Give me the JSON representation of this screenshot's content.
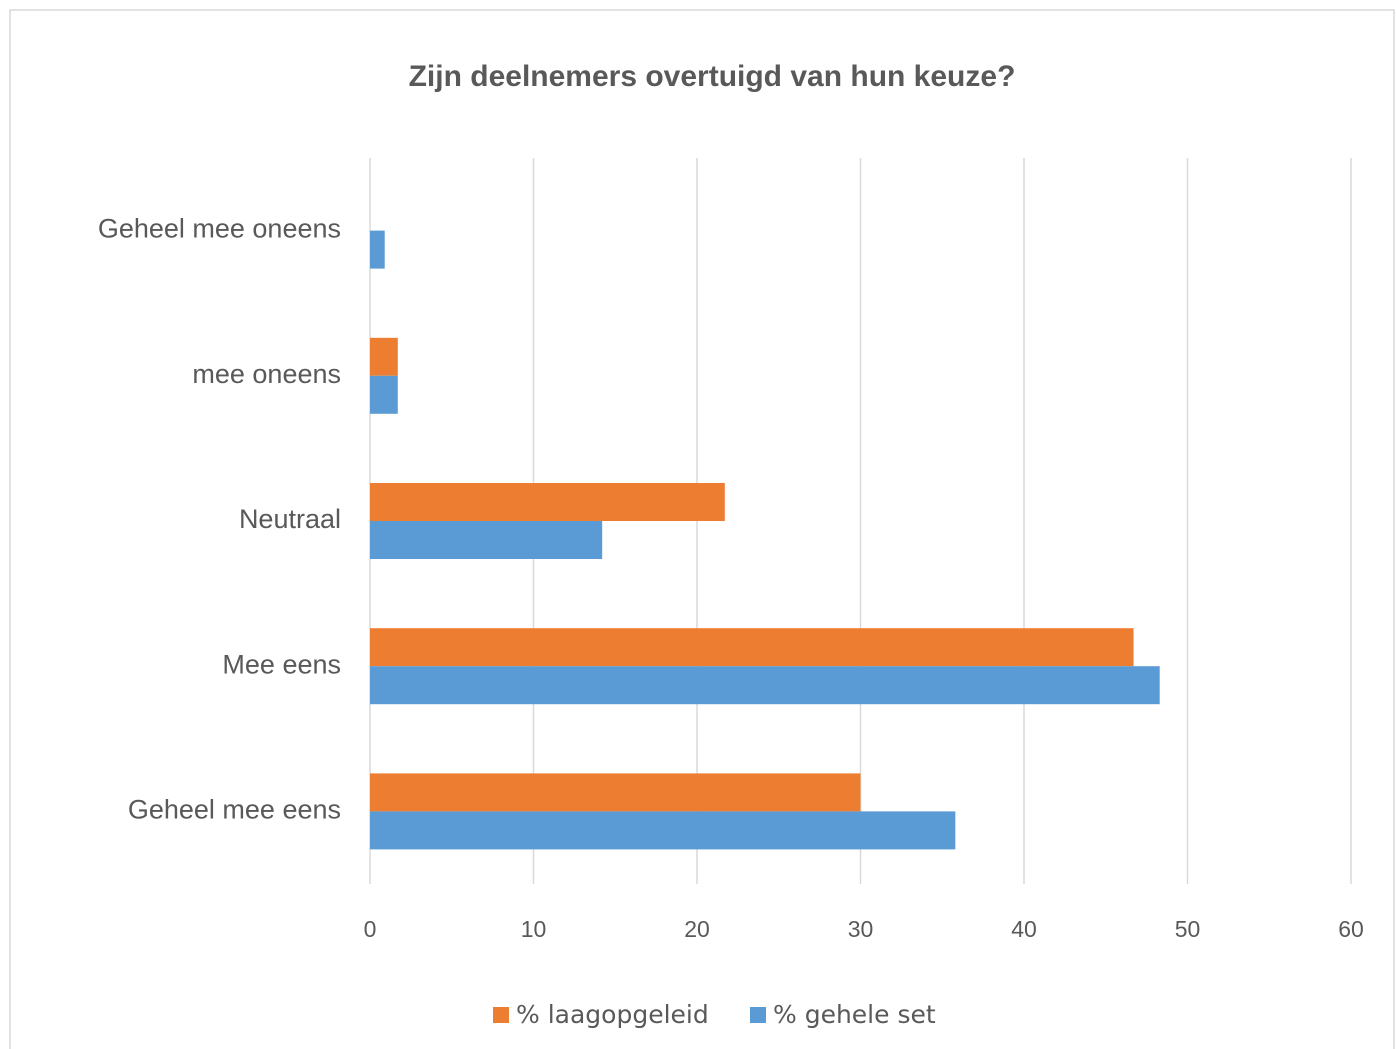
{
  "chart_data": {
    "type": "bar",
    "orientation": "horizontal",
    "title": "Zijn deelnemers overtuigd van hun keuze?",
    "categories": [
      "Geheel mee oneens",
      "mee oneens",
      "Neutraal",
      "Mee eens",
      "Geheel mee eens"
    ],
    "series": [
      {
        "name": "% laagopgeleid",
        "color": "#ed7d31",
        "values": [
          0,
          1.7,
          21.7,
          46.7,
          30.0
        ]
      },
      {
        "name": "% gehele set",
        "color": "#5b9bd5",
        "values": [
          0.9,
          1.7,
          14.2,
          48.3,
          35.8
        ]
      }
    ],
    "xlim": [
      0,
      60
    ],
    "xticks": [
      0,
      10,
      20,
      30,
      40,
      50,
      60
    ],
    "grid": true,
    "legend": "bottom"
  }
}
